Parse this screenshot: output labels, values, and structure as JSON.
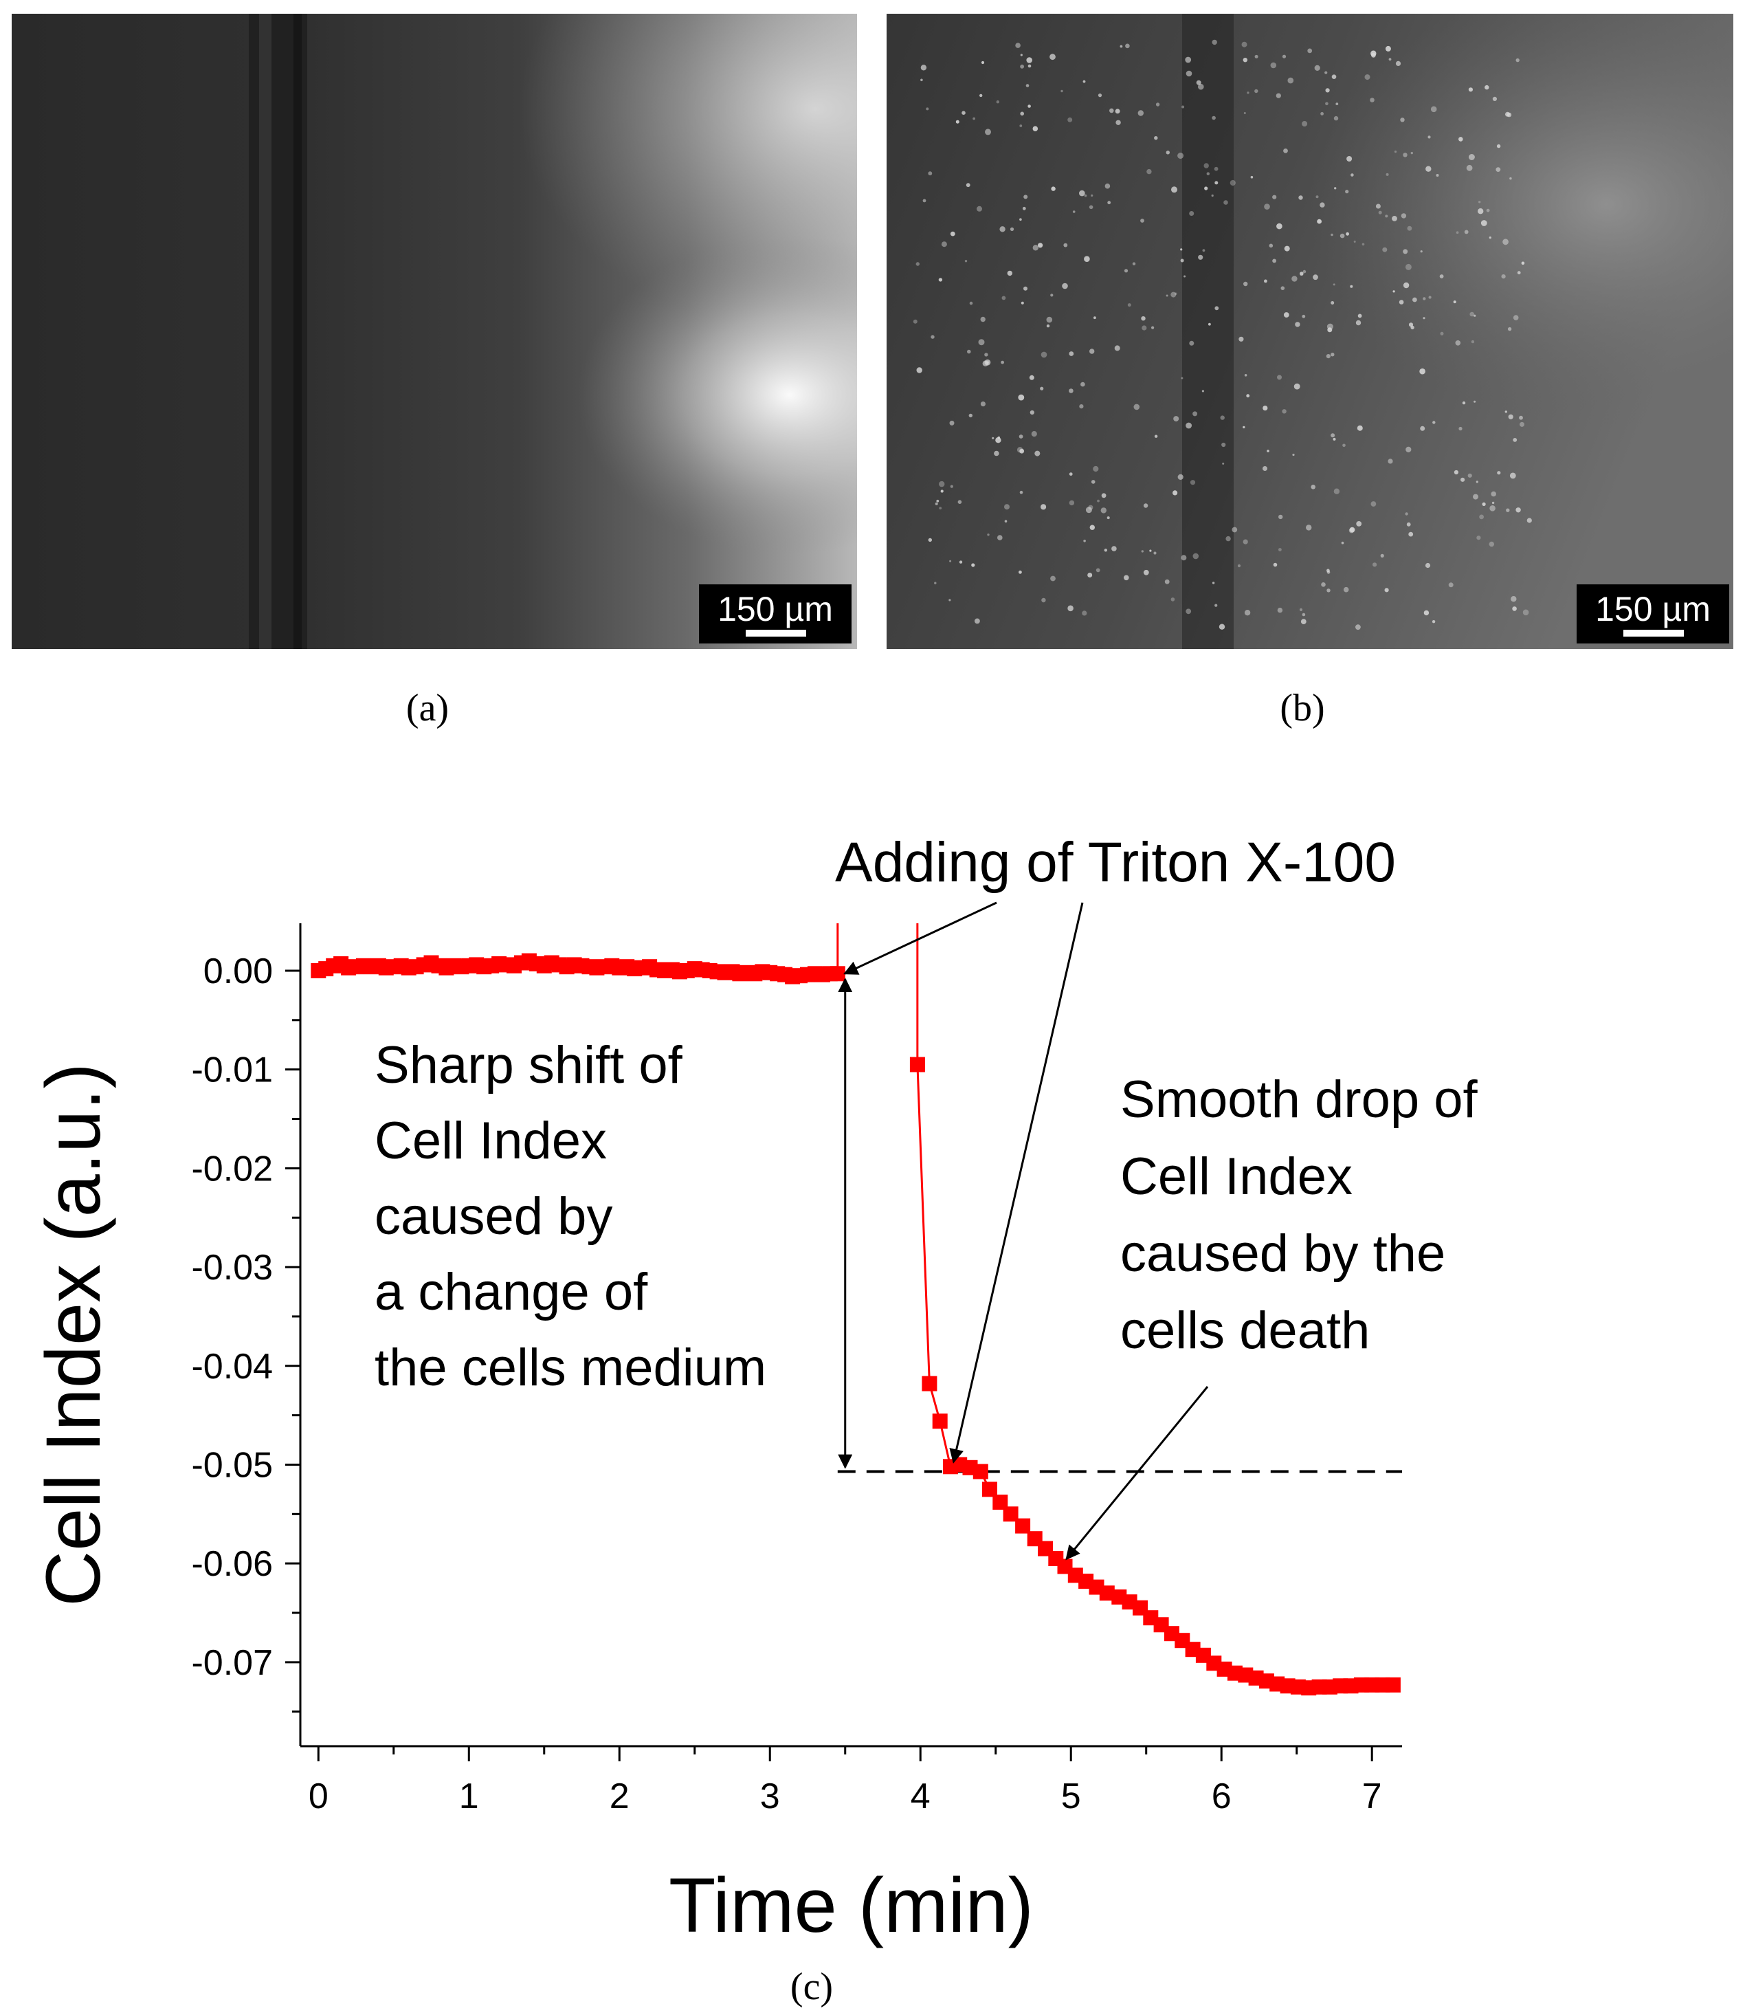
{
  "panel_a": {
    "caption": "(a)",
    "scale_bar": "150 µm"
  },
  "panel_b": {
    "caption": "(b)",
    "scale_bar": "150 µm"
  },
  "panel_c": {
    "caption": "(c)"
  },
  "colors": {
    "series": "#ff0000",
    "axis": "#000000",
    "reference_line": "#000000"
  },
  "chart_data": {
    "type": "line",
    "title": "",
    "xlabel": "Time (min)",
    "ylabel": "Cell Index (a.u.)",
    "xlim": [
      -0.12,
      7.2
    ],
    "ylim": [
      -0.0785,
      0.0048
    ],
    "x_ticks": [
      "0",
      "1",
      "2",
      "3",
      "4",
      "5",
      "6",
      "7"
    ],
    "y_ticks": [
      "0.00",
      "-0.01",
      "-0.02",
      "-0.03",
      "-0.04",
      "-0.05",
      "-0.06",
      "-0.07"
    ],
    "reference_line": {
      "y": -0.0507,
      "style": "dashed",
      "x_range": [
        3.45,
        7.2
      ]
    },
    "annotations": [
      {
        "id": "triton",
        "lines": [
          "Adding of Triton X-100"
        ]
      },
      {
        "id": "shift",
        "lines": [
          "Sharp shift of",
          "Cell Index",
          "caused by",
          "a change of",
          "the cells medium"
        ]
      },
      {
        "id": "drop",
        "lines": [
          "Smooth drop of",
          "Cell Index",
          "caused by the",
          "cells death"
        ]
      }
    ],
    "events": [
      {
        "x": 3.45,
        "y_top": 0.0048,
        "y_bottom": -0.0003,
        "style": "vertical-mark"
      },
      {
        "x": 3.98,
        "y_top": 0.0048,
        "y_bottom": -0.0095,
        "style": "vertical-mark"
      }
    ],
    "series": [
      {
        "color": "#ff0000",
        "marker": "square",
        "segments": [
          [
            [
              0.0,
              0.0
            ],
            [
              0.05,
              0.0002
            ],
            [
              0.1,
              0.0005
            ],
            [
              0.15,
              0.0007
            ],
            [
              0.2,
              0.0003
            ],
            [
              0.25,
              0.0004
            ],
            [
              0.3,
              0.0005
            ],
            [
              0.35,
              0.0004
            ],
            [
              0.4,
              0.0005
            ],
            [
              0.45,
              0.0003
            ],
            [
              0.5,
              0.0004
            ],
            [
              0.55,
              0.0005
            ],
            [
              0.6,
              0.0003
            ],
            [
              0.65,
              0.0004
            ],
            [
              0.7,
              0.0006
            ],
            [
              0.75,
              0.0008
            ],
            [
              0.8,
              0.0005
            ],
            [
              0.85,
              0.0003
            ],
            [
              0.9,
              0.0005
            ],
            [
              0.95,
              0.0004
            ],
            [
              1.0,
              0.0005
            ],
            [
              1.05,
              0.0006
            ],
            [
              1.1,
              0.0004
            ],
            [
              1.15,
              0.0005
            ],
            [
              1.2,
              0.0007
            ],
            [
              1.25,
              0.0006
            ],
            [
              1.3,
              0.0005
            ],
            [
              1.35,
              0.0008
            ],
            [
              1.4,
              0.001
            ],
            [
              1.45,
              0.0007
            ],
            [
              1.5,
              0.0005
            ],
            [
              1.55,
              0.0008
            ],
            [
              1.6,
              0.0006
            ],
            [
              1.65,
              0.0004
            ],
            [
              1.7,
              0.0006
            ],
            [
              1.75,
              0.0005
            ],
            [
              1.8,
              0.0004
            ],
            [
              1.85,
              0.0003
            ],
            [
              1.9,
              0.0004
            ],
            [
              1.95,
              0.0005
            ],
            [
              2.0,
              0.0003
            ],
            [
              2.05,
              0.0004
            ],
            [
              2.1,
              0.0002
            ],
            [
              2.15,
              0.0003
            ],
            [
              2.2,
              0.0004
            ],
            [
              2.25,
              0.0001
            ],
            [
              2.3,
              0.0
            ],
            [
              2.35,
              0.0001
            ],
            [
              2.4,
              -0.0001
            ],
            [
              2.45,
              0.0
            ],
            [
              2.5,
              0.0002
            ],
            [
              2.55,
              0.0001
            ],
            [
              2.6,
              0.0
            ],
            [
              2.65,
              -0.0001
            ],
            [
              2.7,
              -0.0002
            ],
            [
              2.75,
              -0.0001
            ],
            [
              2.8,
              -0.0003
            ],
            [
              2.85,
              -0.0002
            ],
            [
              2.9,
              -0.0003
            ],
            [
              2.95,
              -0.0001
            ],
            [
              3.0,
              -0.0002
            ],
            [
              3.05,
              -0.0003
            ],
            [
              3.1,
              -0.0004
            ],
            [
              3.15,
              -0.0006
            ],
            [
              3.2,
              -0.0005
            ],
            [
              3.25,
              -0.0004
            ],
            [
              3.3,
              -0.0003
            ],
            [
              3.35,
              -0.0004
            ],
            [
              3.4,
              -0.0003
            ],
            [
              3.45,
              -0.0003
            ]
          ],
          [
            [
              3.98,
              -0.0095
            ],
            [
              4.06,
              -0.0418
            ],
            [
              4.13,
              -0.0456
            ],
            [
              4.2,
              -0.0502
            ],
            [
              4.26,
              -0.05
            ],
            [
              4.33,
              -0.0503
            ],
            [
              4.4,
              -0.0507
            ],
            [
              4.46,
              -0.0525
            ],
            [
              4.53,
              -0.0538
            ],
            [
              4.6,
              -0.055
            ],
            [
              4.68,
              -0.0562
            ],
            [
              4.76,
              -0.0575
            ],
            [
              4.83,
              -0.0585
            ],
            [
              4.9,
              -0.0595
            ],
            [
              4.96,
              -0.0603
            ],
            [
              5.03,
              -0.0612
            ],
            [
              5.1,
              -0.0618
            ],
            [
              5.17,
              -0.0624
            ],
            [
              5.24,
              -0.063
            ],
            [
              5.32,
              -0.0634
            ],
            [
              5.39,
              -0.0639
            ],
            [
              5.46,
              -0.0645
            ],
            [
              5.53,
              -0.0655
            ],
            [
              5.6,
              -0.0662
            ],
            [
              5.67,
              -0.0671
            ],
            [
              5.74,
              -0.0678
            ],
            [
              5.81,
              -0.0687
            ],
            [
              5.88,
              -0.0693
            ],
            [
              5.95,
              -0.0701
            ],
            [
              6.02,
              -0.0707
            ],
            [
              6.09,
              -0.0711
            ],
            [
              6.16,
              -0.0713
            ],
            [
              6.23,
              -0.0716
            ],
            [
              6.3,
              -0.0719
            ],
            [
              6.37,
              -0.0722
            ],
            [
              6.44,
              -0.0724
            ],
            [
              6.51,
              -0.0725
            ],
            [
              6.58,
              -0.0726
            ],
            [
              6.65,
              -0.0725
            ],
            [
              6.72,
              -0.0725
            ],
            [
              6.79,
              -0.0724
            ],
            [
              6.86,
              -0.0724
            ],
            [
              6.93,
              -0.0723
            ],
            [
              7.0,
              -0.0723
            ],
            [
              7.07,
              -0.0723
            ],
            [
              7.14,
              -0.0723
            ]
          ]
        ]
      }
    ]
  }
}
